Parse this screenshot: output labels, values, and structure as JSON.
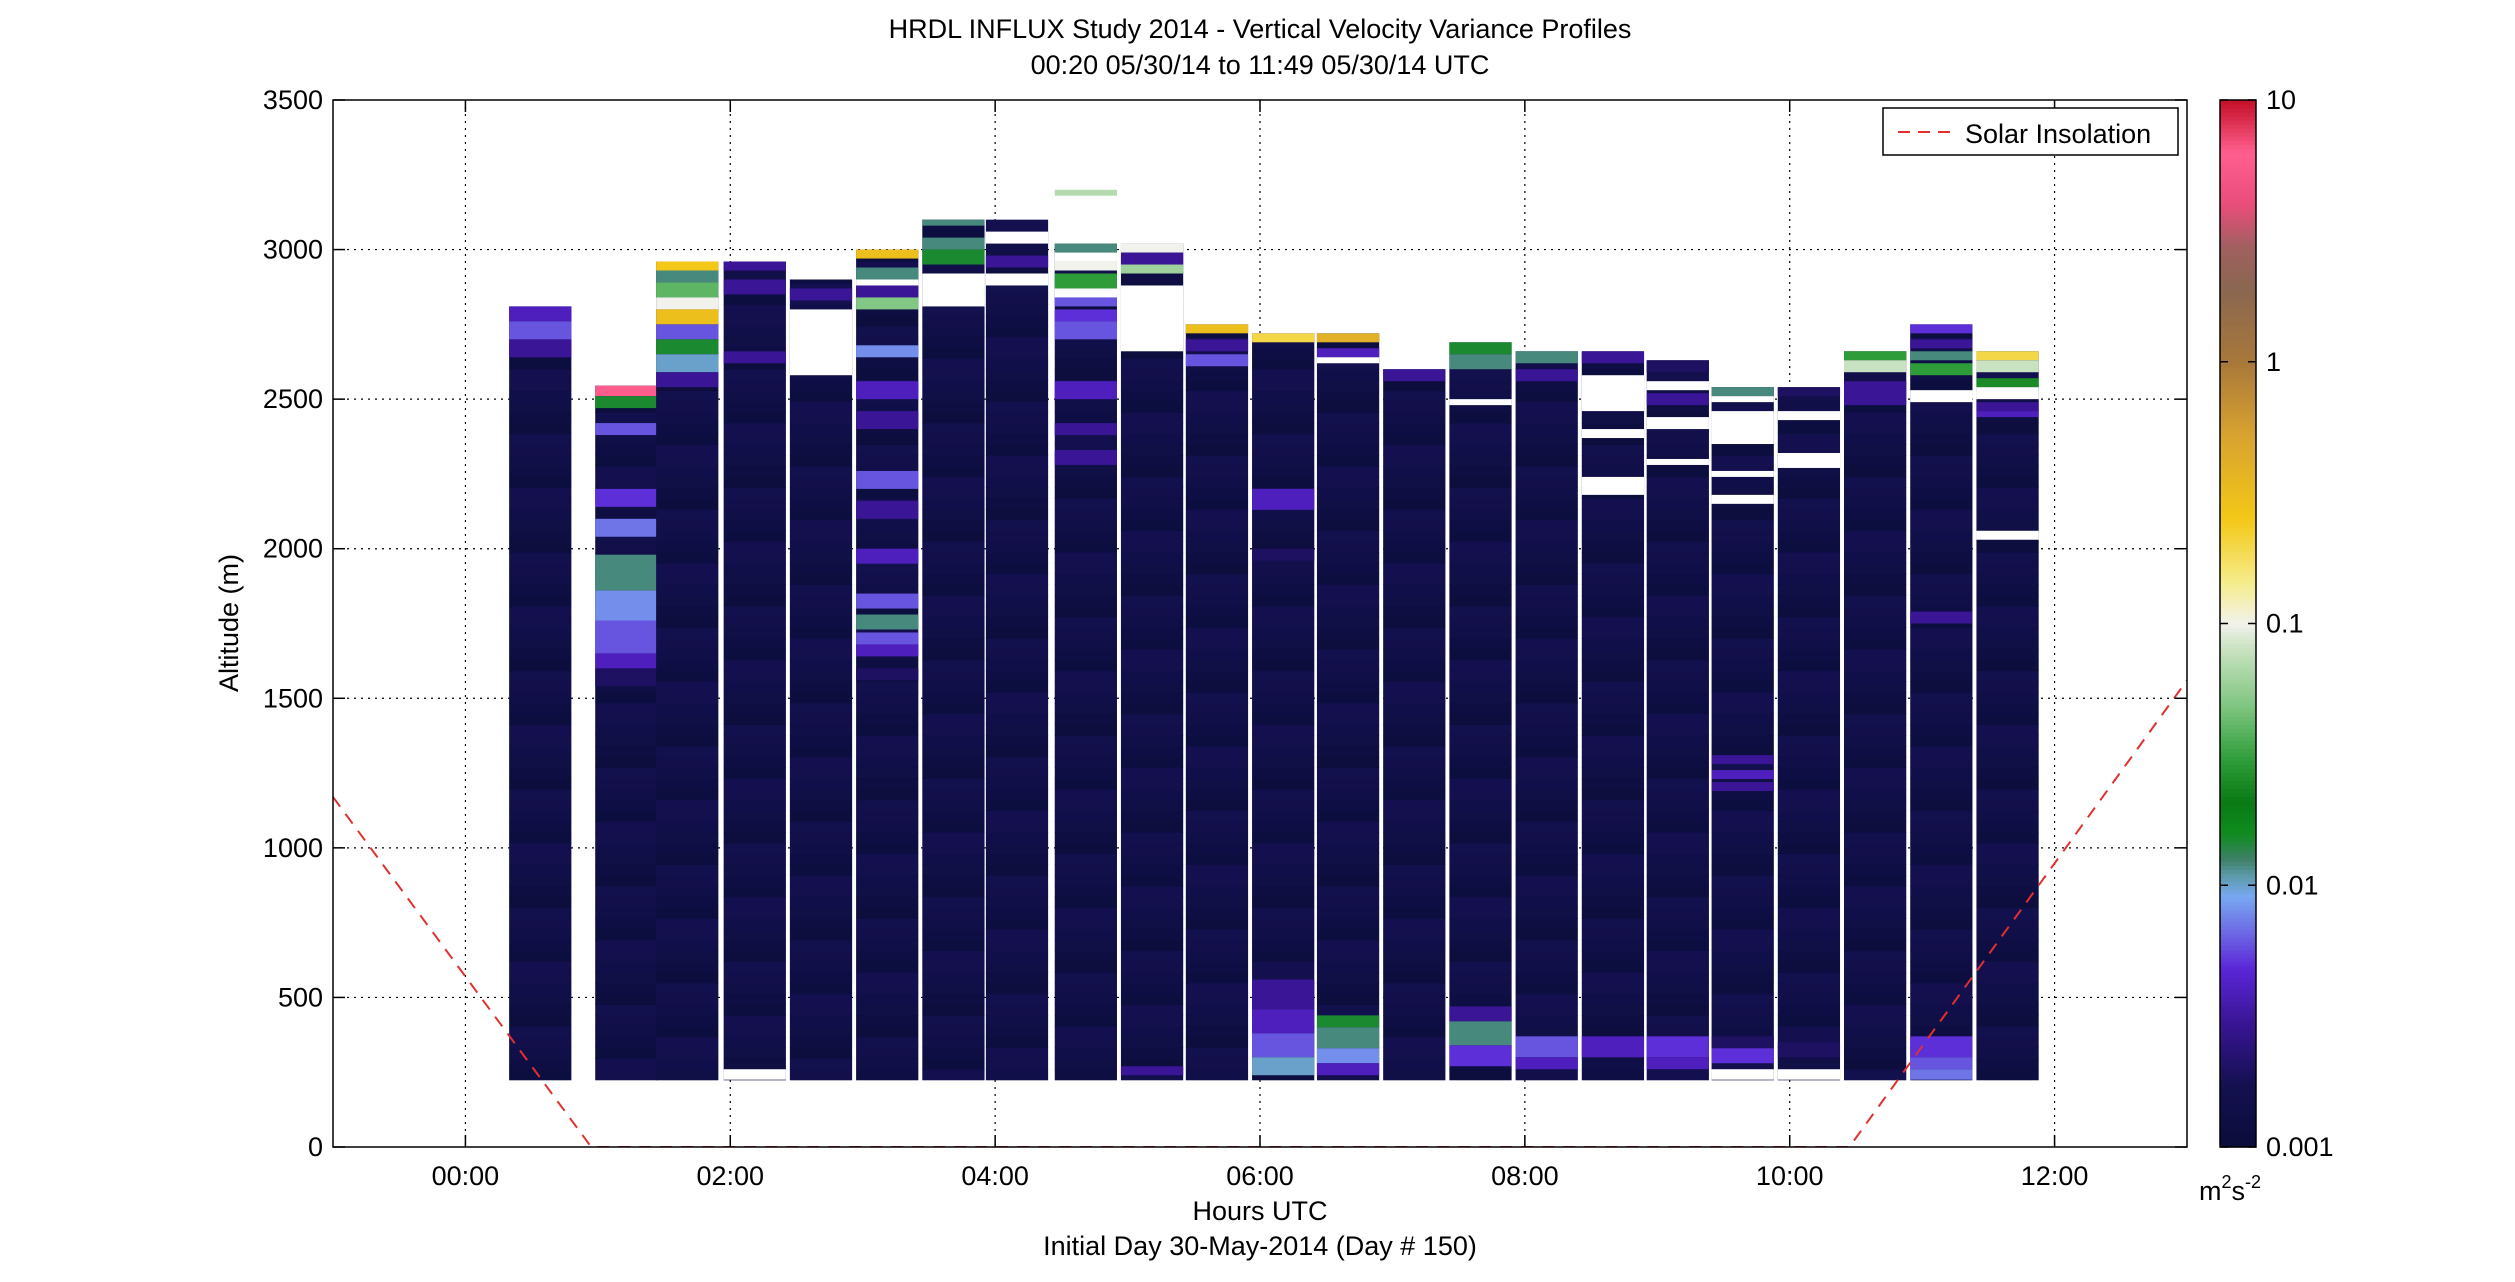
{
  "chart_data": {
    "type": "heatmap",
    "title": "HRDL INFLUX Study 2014 - Vertical Velocity Variance Profiles",
    "subtitle": "00:20 05/30/14 to 11:49 05/30/14  UTC",
    "xlabel": "Hours UTC",
    "xlabel2": "Initial Day 30-May-2014 (Day # 150)",
    "ylabel": "Altitude (m)",
    "xlim": [
      -1.0,
      13.0
    ],
    "ylim": [
      0,
      3500
    ],
    "x_ticks": [
      0,
      2,
      4,
      6,
      8,
      10,
      12
    ],
    "x_tick_labels": [
      "00:00",
      "02:00",
      "04:00",
      "06:00",
      "08:00",
      "10:00",
      "12:00"
    ],
    "y_ticks": [
      0,
      500,
      1000,
      1500,
      2000,
      2500,
      3000,
      3500
    ],
    "y_tick_labels": [
      "0",
      "500",
      "1000",
      "1500",
      "2000",
      "2500",
      "3000",
      "3500"
    ],
    "grid": true,
    "legend": {
      "position": "top-right",
      "entries": [
        "Solar Insolation"
      ]
    },
    "colorbar": {
      "scale": "log",
      "range": [
        0.001,
        10
      ],
      "ticks": [
        0.001,
        0.01,
        0.1,
        1,
        10
      ],
      "tick_labels": [
        "0.001",
        "0.01",
        "0.1",
        "1",
        "10"
      ],
      "unit_base": "m",
      "unit_exp1": "2",
      "unit_mid": "s",
      "unit_exp2": "-2",
      "stops": [
        [
          0.0,
          "#0b0d3a"
        ],
        [
          0.06,
          "#141050"
        ],
        [
          0.12,
          "#3a1596"
        ],
        [
          0.17,
          "#5a26d6"
        ],
        [
          0.21,
          "#6f72e6"
        ],
        [
          0.24,
          "#78a8f0"
        ],
        [
          0.26,
          "#5c9aa6"
        ],
        [
          0.275,
          "#3e8068"
        ],
        [
          0.3,
          "#0f8c1e"
        ],
        [
          0.33,
          "#0a7a14"
        ],
        [
          0.37,
          "#2e9d3a"
        ],
        [
          0.42,
          "#7cc47e"
        ],
        [
          0.48,
          "#cfe4c6"
        ],
        [
          0.5,
          "#f2f2ec"
        ],
        [
          0.54,
          "#f5ec8a"
        ],
        [
          0.6,
          "#f4c817"
        ],
        [
          0.68,
          "#d8a330"
        ],
        [
          0.75,
          "#a8783a"
        ],
        [
          0.82,
          "#8a6650"
        ],
        [
          0.86,
          "#a06060"
        ],
        [
          0.9,
          "#e84d7a"
        ],
        [
          0.95,
          "#ff5f8f"
        ],
        [
          1.0,
          "#c41028"
        ]
      ]
    },
    "solar_insolation": {
      "name": "Solar Insolation",
      "color": "#e03030",
      "dash": "dashed",
      "x": [
        -1.0,
        0.95,
        10.45,
        13.0
      ],
      "y": [
        1170,
        0,
        0,
        1560
      ]
    },
    "profile_width_hours": 0.47,
    "base_altitude": 225,
    "cell_height": 36,
    "profiles": [
      {
        "t": 0.33,
        "top": 2810,
        "bands": [
          [
            2760,
            2810,
            0.004
          ],
          [
            2640,
            2700,
            0.003
          ],
          [
            2700,
            2760,
            0.006
          ]
        ]
      },
      {
        "t": 0.98,
        "top": 2545,
        "bands": [
          [
            2510,
            2545,
            6
          ],
          [
            2470,
            2510,
            0.015
          ],
          [
            2380,
            2420,
            0.006
          ],
          [
            2140,
            2200,
            0.005
          ],
          [
            2040,
            2100,
            0.007
          ],
          [
            1860,
            1980,
            0.012
          ],
          [
            1740,
            1860,
            0.008
          ],
          [
            1650,
            1760,
            0.006
          ],
          [
            1600,
            1650,
            0.004
          ],
          [
            1540,
            1600,
            0.002
          ]
        ]
      },
      {
        "t": 1.44,
        "top": 2960,
        "bands": [
          [
            2930,
            2960,
            0.25
          ],
          [
            2890,
            2930,
            0.012
          ],
          [
            2840,
            2890,
            0.04
          ],
          [
            2800,
            2840,
            0.1
          ],
          [
            2750,
            2800,
            0.3
          ],
          [
            2700,
            2750,
            0.006
          ],
          [
            2650,
            2700,
            0.015
          ],
          [
            2590,
            2650,
            0.01
          ],
          [
            2540,
            2590,
            0.003
          ]
        ]
      },
      {
        "t": 1.95,
        "top": 2960,
        "bands": [
          [
            2930,
            2960,
            0.003
          ],
          [
            2850,
            2900,
            0.003
          ],
          [
            2620,
            2660,
            0.003
          ]
        ],
        "gaps": [
          [
            225,
            260
          ]
        ]
      },
      {
        "t": 2.45,
        "top": 2900,
        "bands": [
          [
            2830,
            2870,
            0.003
          ]
        ],
        "gaps": [
          [
            2580,
            2800
          ]
        ]
      },
      {
        "t": 2.95,
        "top": 3000,
        "bands": [
          [
            2970,
            3000,
            0.3
          ],
          [
            2900,
            2940,
            0.012
          ],
          [
            2840,
            2880,
            0.003
          ],
          [
            2800,
            2840,
            0.05
          ],
          [
            2640,
            2680,
            0.008
          ],
          [
            2500,
            2560,
            0.004
          ],
          [
            2400,
            2460,
            0.003
          ],
          [
            2200,
            2260,
            0.006
          ],
          [
            2100,
            2160,
            0.003
          ],
          [
            1950,
            2000,
            0.004
          ],
          [
            1800,
            1850,
            0.006
          ],
          [
            1730,
            1780,
            0.012
          ],
          [
            1680,
            1720,
            0.006
          ],
          [
            1640,
            1680,
            0.004
          ],
          [
            1560,
            1600,
            0.002
          ]
        ],
        "gaps": [
          [
            2880,
            2900
          ]
        ]
      },
      {
        "t": 3.45,
        "top": 3100,
        "bands": [
          [
            3080,
            3100,
            0.012
          ],
          [
            3000,
            3040,
            0.012
          ],
          [
            2950,
            3000,
            0.015
          ]
        ],
        "gaps": [
          [
            2810,
            2920
          ]
        ]
      },
      {
        "t": 3.93,
        "top": 3100,
        "bands": [
          [
            2940,
            2980,
            0.003
          ]
        ],
        "gaps": [
          [
            3020,
            3060
          ],
          [
            2880,
            2920
          ]
        ]
      },
      {
        "t": 4.45,
        "top": 3020,
        "bands": [
          [
            2990,
            3020,
            0.012
          ],
          [
            2930,
            2960,
            0.1
          ],
          [
            2870,
            2920,
            0.03
          ],
          [
            2810,
            2840,
            0.006
          ],
          [
            2760,
            2800,
            0.005
          ],
          [
            2700,
            2760,
            0.006
          ],
          [
            2500,
            2560,
            0.004
          ],
          [
            2380,
            2420,
            0.003
          ],
          [
            2280,
            2330,
            0.003
          ]
        ],
        "extra": [
          [
            3180,
            3200,
            0.07
          ]
        ],
        "gaps": [
          [
            2960,
            2990
          ],
          [
            2840,
            2870
          ]
        ]
      },
      {
        "t": 4.95,
        "top": 3020,
        "bands": [
          [
            2990,
            3020,
            0.1
          ],
          [
            2950,
            2990,
            0.003
          ],
          [
            2920,
            2950,
            0.06
          ],
          [
            240,
            270,
            0.003
          ]
        ],
        "gaps": [
          [
            2660,
            2880
          ]
        ]
      },
      {
        "t": 5.44,
        "top": 2750,
        "bands": [
          [
            2720,
            2750,
            0.3
          ],
          [
            2660,
            2700,
            0.003
          ],
          [
            2610,
            2650,
            0.006
          ]
        ]
      },
      {
        "t": 5.94,
        "top": 2720,
        "bands": [
          [
            2690,
            2720,
            0.2
          ],
          [
            2130,
            2200,
            0.004
          ],
          [
            1960,
            2000,
            0.002
          ],
          [
            460,
            560,
            0.003
          ],
          [
            380,
            460,
            0.004
          ],
          [
            300,
            380,
            0.006
          ],
          [
            240,
            300,
            0.01
          ]
        ]
      },
      {
        "t": 6.43,
        "top": 2720,
        "bands": [
          [
            2690,
            2720,
            0.4
          ],
          [
            2640,
            2670,
            0.004
          ],
          [
            400,
            440,
            0.015
          ],
          [
            330,
            400,
            0.012
          ],
          [
            280,
            330,
            0.008
          ],
          [
            240,
            280,
            0.004
          ]
        ],
        "gaps": [
          [
            2620,
            2640
          ]
        ]
      },
      {
        "t": 6.93,
        "top": 2600,
        "bands": [
          [
            2560,
            2600,
            0.003
          ]
        ]
      },
      {
        "t": 7.43,
        "top": 2690,
        "bands": [
          [
            2650,
            2690,
            0.015
          ],
          [
            2600,
            2650,
            0.012
          ],
          [
            420,
            470,
            0.003
          ],
          [
            340,
            420,
            0.012
          ],
          [
            270,
            340,
            0.005
          ]
        ],
        "gaps": [
          [
            2480,
            2500
          ]
        ]
      },
      {
        "t": 7.93,
        "top": 2660,
        "bands": [
          [
            2620,
            2660,
            0.012
          ],
          [
            2560,
            2600,
            0.003
          ],
          [
            300,
            370,
            0.006
          ],
          [
            260,
            300,
            0.004
          ]
        ]
      },
      {
        "t": 8.43,
        "top": 2660,
        "bands": [
          [
            2620,
            2660,
            0.003
          ],
          [
            300,
            370,
            0.004
          ]
        ],
        "gaps": [
          [
            2180,
            2240
          ],
          [
            2370,
            2400
          ],
          [
            2460,
            2580
          ]
        ]
      },
      {
        "t": 8.92,
        "top": 2630,
        "bands": [
          [
            2590,
            2630,
            0.002
          ],
          [
            2480,
            2520,
            0.003
          ],
          [
            300,
            370,
            0.005
          ],
          [
            260,
            300,
            0.004
          ]
        ],
        "gaps": [
          [
            2280,
            2300
          ],
          [
            2400,
            2440
          ],
          [
            2530,
            2560
          ]
        ]
      },
      {
        "t": 9.41,
        "top": 2540,
        "bands": [
          [
            2510,
            2540,
            0.012
          ],
          [
            1280,
            1310,
            0.003
          ],
          [
            1230,
            1260,
            0.004
          ],
          [
            1190,
            1220,
            0.003
          ],
          [
            330,
            370,
            0.002
          ],
          [
            280,
            330,
            0.005
          ]
        ],
        "gaps": [
          [
            2150,
            2180
          ],
          [
            2240,
            2260
          ],
          [
            2350,
            2460
          ],
          [
            2490,
            2510
          ],
          [
            225,
            260
          ]
        ]
      },
      {
        "t": 9.91,
        "top": 2540,
        "bands": [
          [
            2510,
            2540,
            0.002
          ],
          [
            300,
            350,
            0.002
          ]
        ],
        "gaps": [
          [
            2270,
            2320
          ],
          [
            2430,
            2460
          ],
          [
            225,
            260
          ]
        ]
      },
      {
        "t": 10.41,
        "top": 2660,
        "bands": [
          [
            2630,
            2660,
            0.03
          ],
          [
            2590,
            2630,
            0.08
          ],
          [
            2480,
            2560,
            0.003
          ]
        ]
      },
      {
        "t": 10.91,
        "top": 2750,
        "bands": [
          [
            2720,
            2750,
            0.005
          ],
          [
            2670,
            2700,
            0.003
          ],
          [
            2630,
            2660,
            0.012
          ],
          [
            2580,
            2620,
            0.03
          ],
          [
            1750,
            1790,
            0.003
          ],
          [
            300,
            370,
            0.005
          ],
          [
            260,
            300,
            0.006
          ],
          [
            225,
            260,
            0.007
          ]
        ],
        "gaps": [
          [
            2490,
            2530
          ]
        ]
      },
      {
        "t": 11.41,
        "top": 2660,
        "bands": [
          [
            2630,
            2660,
            0.2
          ],
          [
            2590,
            2630,
            0.08
          ],
          [
            2540,
            2570,
            0.025
          ],
          [
            2460,
            2490,
            0.003
          ],
          [
            2440,
            2460,
            0.004
          ]
        ],
        "gaps": [
          [
            2500,
            2540
          ],
          [
            2030,
            2060
          ]
        ]
      }
    ]
  }
}
